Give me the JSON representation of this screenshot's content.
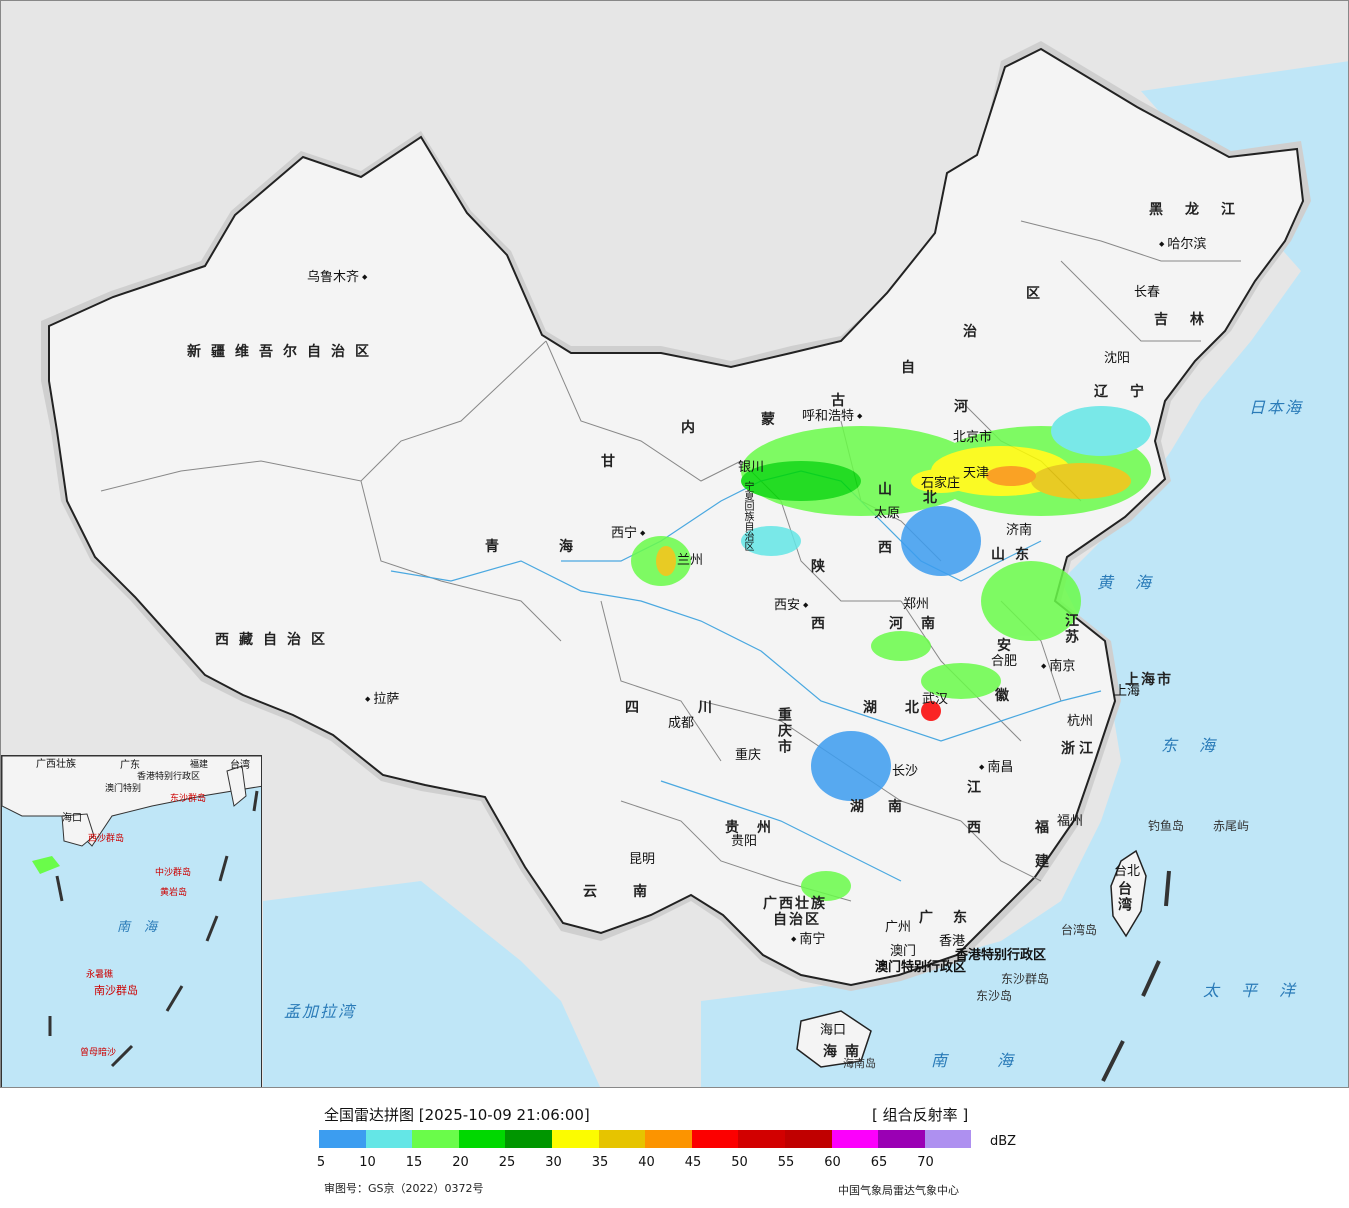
{
  "map": {
    "cities": [
      {
        "name": "乌鲁木齐",
        "id": "urumqi"
      },
      {
        "name": "拉萨",
        "id": "lhasa"
      },
      {
        "name": "西宁",
        "id": "xining"
      },
      {
        "name": "银川",
        "id": "yinchuan"
      },
      {
        "name": "呼和浩特",
        "id": "hohhot"
      },
      {
        "name": "北京市",
        "id": "beijing"
      },
      {
        "name": "天津",
        "id": "tianjin"
      },
      {
        "name": "石家庄",
        "id": "shijiazhuang"
      },
      {
        "name": "太原",
        "id": "taiyuan"
      },
      {
        "name": "济南",
        "id": "jinan"
      },
      {
        "name": "沈阳",
        "id": "shenyang"
      },
      {
        "name": "长春",
        "id": "changchun"
      },
      {
        "name": "哈尔滨",
        "id": "harbin"
      },
      {
        "name": "西安",
        "id": "xian"
      },
      {
        "name": "郑州",
        "id": "zhengzhou"
      },
      {
        "name": "合肥",
        "id": "hefei"
      },
      {
        "name": "南京",
        "id": "nanjing"
      },
      {
        "name": "上海",
        "id": "shanghai"
      },
      {
        "name": "杭州",
        "id": "hangzhou"
      },
      {
        "name": "武汉",
        "id": "wuhan"
      },
      {
        "name": "成都",
        "id": "chengdu"
      },
      {
        "name": "重庆",
        "id": "chongqing"
      },
      {
        "name": "长沙",
        "id": "changsha"
      },
      {
        "name": "南昌",
        "id": "nanchang"
      },
      {
        "name": "福州",
        "id": "fuzhou"
      },
      {
        "name": "贵阳",
        "id": "guiyang"
      },
      {
        "name": "昆明",
        "id": "kunming"
      },
      {
        "name": "南宁",
        "id": "nanning"
      },
      {
        "name": "广州",
        "id": "guangzhou"
      },
      {
        "name": "香港",
        "id": "hongkong"
      },
      {
        "name": "澳门",
        "id": "macau"
      },
      {
        "name": "台北",
        "id": "taipei"
      },
      {
        "name": "海口",
        "id": "haikou"
      },
      {
        "name": "兰州",
        "id": "lanzhou"
      }
    ],
    "provinces": [
      {
        "name": "新疆维吾尔自治区",
        "id": "xinjiang"
      },
      {
        "name": "西藏自治区",
        "id": "xizang"
      },
      {
        "name": "青海",
        "id": "qinghai"
      },
      {
        "name": "甘",
        "id": "gan"
      },
      {
        "name": "内",
        "id": "nei"
      },
      {
        "name": "蒙",
        "id": "meng"
      },
      {
        "name": "古",
        "id": "gu"
      },
      {
        "name": "自",
        "id": "zi"
      },
      {
        "name": "治",
        "id": "zhi"
      },
      {
        "name": "区",
        "id": "qu"
      },
      {
        "name": "黑龙江",
        "id": "heilongjiang"
      },
      {
        "name": "吉林",
        "id": "jilin"
      },
      {
        "name": "辽宁",
        "id": "liaoning"
      },
      {
        "name": "河",
        "id": "he-bei1"
      },
      {
        "name": "北",
        "id": "he-bei2"
      },
      {
        "name": "山东",
        "id": "shandong"
      },
      {
        "name": "山",
        "id": "shan-xi1"
      },
      {
        "name": "西",
        "id": "shan-xi2"
      },
      {
        "name": "陕",
        "id": "shaan1"
      },
      {
        "name": "西",
        "id": "shaan2"
      },
      {
        "name": "河南",
        "id": "henan"
      },
      {
        "name": "江苏",
        "id": "jiangsu"
      },
      {
        "name": "安",
        "id": "an"
      },
      {
        "name": "徽",
        "id": "hui"
      },
      {
        "name": "上海市",
        "id": "shanghai-prov"
      },
      {
        "name": "浙江",
        "id": "zhejiang"
      },
      {
        "name": "湖",
        "id": "hu-bei1"
      },
      {
        "name": "北",
        "id": "hu-bei2"
      },
      {
        "name": "湖",
        "id": "hu-nan1"
      },
      {
        "name": "南",
        "id": "hu-nan2"
      },
      {
        "name": "四",
        "id": "si"
      },
      {
        "name": "川",
        "id": "chuan"
      },
      {
        "name": "重庆市",
        "id": "chongqing-prov"
      },
      {
        "name": "贵州",
        "id": "guizhou"
      },
      {
        "name": "云南",
        "id": "yunnan"
      },
      {
        "name": "广西壮族",
        "id": "guangxi1"
      },
      {
        "name": "自治区",
        "id": "guangxi2"
      },
      {
        "name": "广东",
        "id": "guangdong"
      },
      {
        "name": "江",
        "id": "jiang"
      },
      {
        "name": "西",
        "id": "jiangxi2"
      },
      {
        "name": "福",
        "id": "fu"
      },
      {
        "name": "建",
        "id": "jian"
      },
      {
        "name": "台湾",
        "id": "taiwan"
      },
      {
        "name": "海南",
        "id": "hainan"
      },
      {
        "name": "宁夏回族自治区",
        "id": "ningxia"
      },
      {
        "name": "香港特别行政区",
        "id": "hk-sar"
      },
      {
        "name": "澳门特别行政区",
        "id": "mo-sar"
      }
    ],
    "seas": [
      {
        "name": "日本海",
        "id": "sea-japan"
      },
      {
        "name": "黄海",
        "id": "sea-yellow"
      },
      {
        "name": "东海",
        "id": "sea-east"
      },
      {
        "name": "太平洋",
        "id": "sea-pacific"
      },
      {
        "name": "南海",
        "id": "sea-south"
      },
      {
        "name": "孟加拉湾",
        "id": "sea-bengal"
      }
    ],
    "islands": [
      {
        "name": "钓鱼岛",
        "id": "diaoyu"
      },
      {
        "name": "赤尾屿",
        "id": "chiwei"
      },
      {
        "name": "台湾岛",
        "id": "taiwan-island"
      },
      {
        "name": "东沙群岛",
        "id": "dongsha-islands"
      },
      {
        "name": "东沙岛",
        "id": "dongsha-island"
      },
      {
        "name": "海南岛",
        "id": "hainan-island"
      }
    ],
    "inset": {
      "labels": [
        "广西壮族",
        "广东",
        "福建",
        "台湾",
        "澳门特别",
        "香港特别行政区",
        "海口",
        "西沙群岛",
        "中沙群岛",
        "黄岩岛",
        "南海",
        "永暑礁",
        "南沙群岛",
        "曾母暗沙",
        "东沙群岛"
      ]
    }
  },
  "legend": {
    "title": "全国雷达拼图 [2025-10-09 21:06:00]",
    "product": "[ 组合反射率 ]",
    "unit": "dBZ",
    "colors": [
      "#3c9df0",
      "#64e6e6",
      "#6afc4a",
      "#00d800",
      "#009600",
      "#fcfc00",
      "#e6c400",
      "#fc9400",
      "#fc0000",
      "#d20000",
      "#c00000",
      "#fc00fc",
      "#9a00b4",
      "#ae90f0"
    ],
    "ticks": [
      "5",
      "10",
      "15",
      "20",
      "25",
      "30",
      "35",
      "40",
      "45",
      "50",
      "55",
      "60",
      "65",
      "70"
    ],
    "approval": "审图号：GS京（2022）0372号",
    "agency": "中国气象局雷达气象中心"
  }
}
